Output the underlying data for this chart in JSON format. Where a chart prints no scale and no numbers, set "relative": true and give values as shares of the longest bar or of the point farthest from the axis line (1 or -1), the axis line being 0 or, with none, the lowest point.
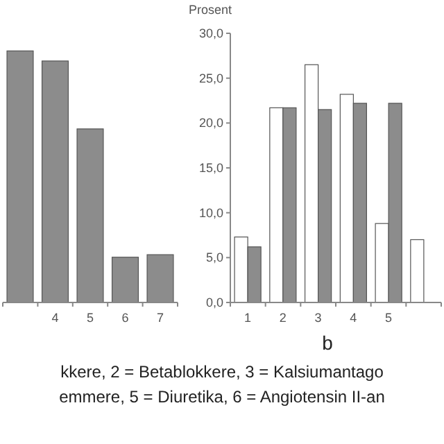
{
  "chart_data": [
    {
      "type": "bar",
      "relative": true,
      "categories": [
        null,
        "4",
        "5",
        "6",
        "7"
      ],
      "series": [
        {
          "color": "#8c8c8c",
          "values": [
            1,
            0.96,
            0.69,
            0.18,
            0.19
          ]
        }
      ]
    },
    {
      "type": "bar",
      "title": "b",
      "ylabel": "Prosent",
      "categories": [
        "1",
        "2",
        "3",
        "4",
        "5",
        null
      ],
      "ylim": [
        0,
        30
      ],
      "yticks": [
        {
          "value": 0,
          "label": "0,0"
        },
        {
          "value": 5,
          "label": "5,0"
        },
        {
          "value": 10,
          "label": "10,0"
        },
        {
          "value": 15,
          "label": "15,0"
        },
        {
          "value": 20,
          "label": "20,0"
        },
        {
          "value": 25,
          "label": "25,0"
        },
        {
          "value": 30,
          "label": "30,0"
        }
      ],
      "series": [
        {
          "color": "#ffffff",
          "values": [
            7.3,
            21.7,
            26.5,
            23.2,
            8.8,
            7.0
          ]
        },
        {
          "color": "#8c8c8c",
          "values": [
            6.2,
            21.7,
            21.5,
            22.2,
            22.2,
            null
          ]
        }
      ],
      "annotations": [
        "kkere, 2 = Betablokkere, 3 = Kalsiumantago",
        "emmere, 5 = Diuretika, 6 = Angiotensin II-an"
      ]
    }
  ]
}
